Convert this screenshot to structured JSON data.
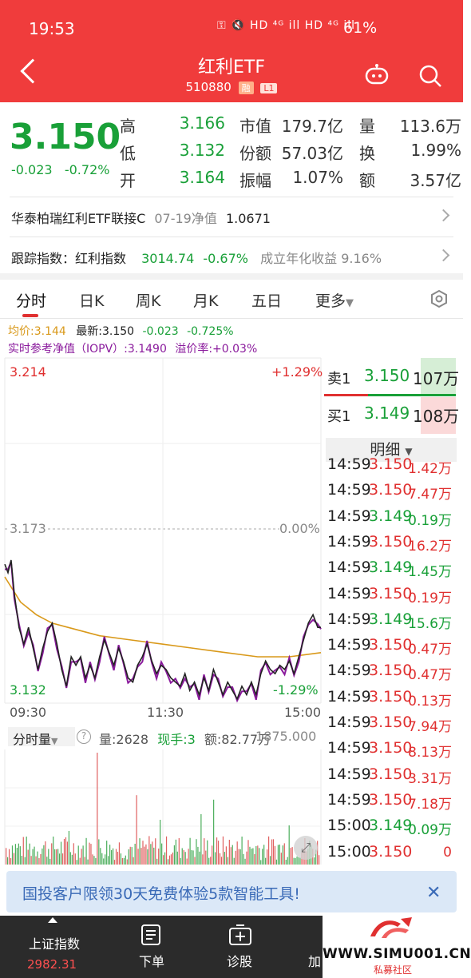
{
  "status_bar": {
    "time": "19:53",
    "icons": "⚿ 🔇 HD ⁴ᴳ ill HD ⁴ᴳ ill",
    "battery": "61%"
  },
  "header": {
    "title": "红利ETF",
    "code": "510880",
    "tag_margin": "融",
    "tag_level": "L1"
  },
  "quote": {
    "price": "3.150",
    "change": "-0.023",
    "change_pct": "-0.72%",
    "high_label": "高",
    "high": "3.166",
    "low_label": "低",
    "low": "3.132",
    "open_label": "开",
    "open": "3.164",
    "mktcap_label": "市值",
    "mktcap": "179.7亿",
    "shares_label": "份额",
    "shares": "57.03亿",
    "amplitude_label": "振幅",
    "amplitude": "1.07%",
    "volume_label": "量",
    "volume": "113.6万",
    "turnover_label": "换",
    "turnover": "1.99%",
    "amount_label": "额",
    "amount": "3.57亿"
  },
  "linked_fund": {
    "name": "华泰柏瑞红利ETF联接C",
    "date_label": "07-19净值",
    "nav": "1.0671"
  },
  "tracking": {
    "label": "跟踪指数：",
    "index": "红利指数",
    "value": "3014.74",
    "pct": "-0.67%",
    "annual_label": "成立年化收益",
    "annual": "9.16%"
  },
  "tabs": [
    "分时",
    "日K",
    "周K",
    "月K",
    "五日",
    "更多"
  ],
  "chart_info": {
    "avg": "均价:3.144",
    "latest": "最新:3.150",
    "chg": "-0.023",
    "chg_pct": "-0.725%",
    "iopv_label": "实时参考净值（IOPV）",
    "iopv": ":3.1490",
    "premium": "溢价率:+0.03%"
  },
  "chart_axis": {
    "top_price": "3.214",
    "top_pct": "+1.29%",
    "mid_price": "3.173",
    "mid_pct": "0.00%",
    "bottom_price": "3.132",
    "bottom_pct": "-1.29%",
    "time_start": "09:30",
    "time_mid": "11:30",
    "time_end": "15:00"
  },
  "volume_info": {
    "label": "分时量",
    "vol": "量:2628",
    "now": "现手:3",
    "amt": "额:82.77万",
    "max": "1875.000"
  },
  "order_book": {
    "ask": {
      "label": "卖1",
      "price": "3.150",
      "vol": "107万"
    },
    "bid": {
      "label": "买1",
      "price": "3.149",
      "vol": "108万"
    },
    "detail_label": "明细"
  },
  "ticks": [
    {
      "time": "14:59",
      "price": "3.150",
      "vol": "1.42万",
      "dir": "up"
    },
    {
      "time": "14:59",
      "price": "3.150",
      "vol": "7.47万",
      "dir": "up"
    },
    {
      "time": "14:59",
      "price": "3.149",
      "vol": "0.19万",
      "dir": "down"
    },
    {
      "time": "14:59",
      "price": "3.150",
      "vol": "16.2万",
      "dir": "up"
    },
    {
      "time": "14:59",
      "price": "3.149",
      "vol": "1.45万",
      "dir": "down"
    },
    {
      "time": "14:59",
      "price": "3.150",
      "vol": "0.19万",
      "dir": "up"
    },
    {
      "time": "14:59",
      "price": "3.149",
      "vol": "15.6万",
      "dir": "down"
    },
    {
      "time": "14:59",
      "price": "3.150",
      "vol": "0.47万",
      "dir": "up"
    },
    {
      "time": "14:59",
      "price": "3.150",
      "vol": "0.47万",
      "dir": "up"
    },
    {
      "time": "14:59",
      "price": "3.150",
      "vol": "0.13万",
      "dir": "up"
    },
    {
      "time": "14:59",
      "price": "3.150",
      "vol": "7.94万",
      "dir": "up"
    },
    {
      "time": "14:59",
      "price": "3.150",
      "vol": "8.13万",
      "dir": "up"
    },
    {
      "time": "14:59",
      "price": "3.150",
      "vol": "3.31万",
      "dir": "up"
    },
    {
      "time": "14:59",
      "price": "3.150",
      "vol": "7.18万",
      "dir": "up"
    },
    {
      "time": "15:00",
      "price": "3.149",
      "vol": "0.09万",
      "dir": "down"
    },
    {
      "time": "15:00",
      "price": "3.150",
      "vol": "0",
      "dir": "up"
    }
  ],
  "banner": {
    "text": "国投客户限领30天免费体验5款智能工具!"
  },
  "bottom_nav": {
    "index_name": "上证指数",
    "index_value": "2982.31",
    "order": "下单",
    "diagnose": "诊股",
    "add": "加",
    "watermark": "WWW.SIMU001.CN",
    "watermark_sub": "私募社区"
  },
  "colors": {
    "header": "#f03c3c",
    "up": "#e03030",
    "down": "#19a038",
    "avg_line": "#d9991a",
    "iopv_line": "#8a1a9c"
  }
}
